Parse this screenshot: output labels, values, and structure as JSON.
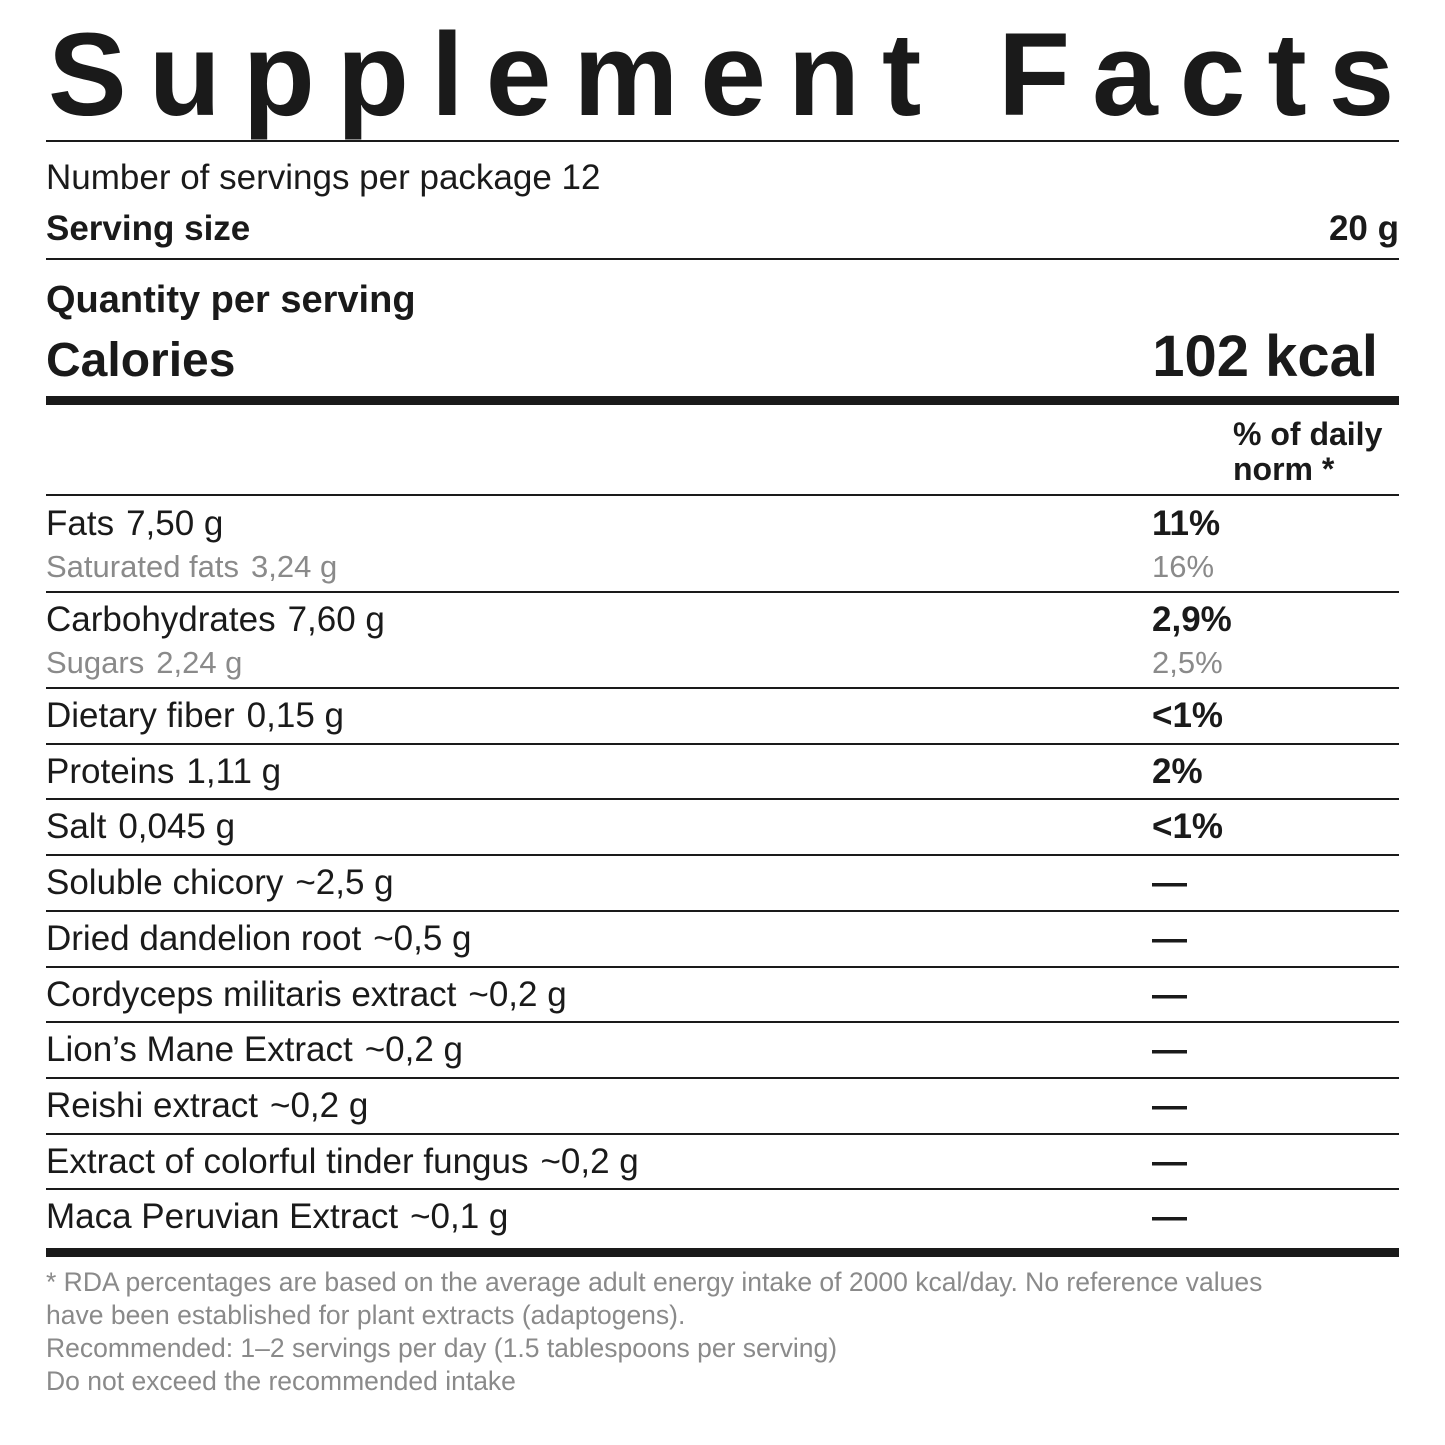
{
  "title": "Supplement Facts",
  "servings_per_package": "Number of servings per package 12",
  "serving_size": {
    "label": "Serving size",
    "value": "20 g"
  },
  "quantity_per_serving": "Quantity per serving",
  "calories": {
    "label": "Calories",
    "value": "102 kcal"
  },
  "daily_norm_header": [
    "% of daily",
    "norm *"
  ],
  "nutrients": [
    {
      "name": "Fats",
      "amount": "7,50 g",
      "percent": "11%",
      "sub": {
        "name": "Saturated fats",
        "amount": "3,24 g",
        "percent": "16%"
      }
    },
    {
      "name": "Carbohydrates",
      "amount": "7,60 g",
      "percent": "2,9%",
      "sub": {
        "name": "Sugars",
        "amount": "2,24 g",
        "percent": "2,5%"
      }
    },
    {
      "name": "Dietary fiber",
      "amount": "0,15 g",
      "percent": "<1%"
    },
    {
      "name": "Proteins",
      "amount": "1,11 g",
      "percent": "2%"
    },
    {
      "name": "Salt",
      "amount": "0,045 g",
      "percent": "<1%"
    },
    {
      "name": "Soluble chicory",
      "amount": "~2,5 g",
      "percent": "—"
    },
    {
      "name": "Dried dandelion root",
      "amount": "~0,5 g",
      "percent": "—"
    },
    {
      "name": "Cordyceps militaris extract",
      "amount": "~0,2 g",
      "percent": "—"
    },
    {
      "name": "Lion’s Mane Extract",
      "amount": "~0,2 g",
      "percent": "—"
    },
    {
      "name": "Reishi extract",
      "amount": "~0,2 g",
      "percent": "—"
    },
    {
      "name": "Extract of colorful tinder fungus",
      "amount": "~0,2 g",
      "percent": "—"
    },
    {
      "name": "Maca Peruvian Extract",
      "amount": "~0,1 g",
      "percent": "—"
    }
  ],
  "footnotes": [
    "* RDA percentages are based on the average adult energy intake of 2000 kcal/day. No reference values",
    "have been established for plant extracts (adaptogens).",
    "Recommended: 1–2 servings per day (1.5 tablespoons per serving)",
    "Do not exceed the recommended intake"
  ]
}
